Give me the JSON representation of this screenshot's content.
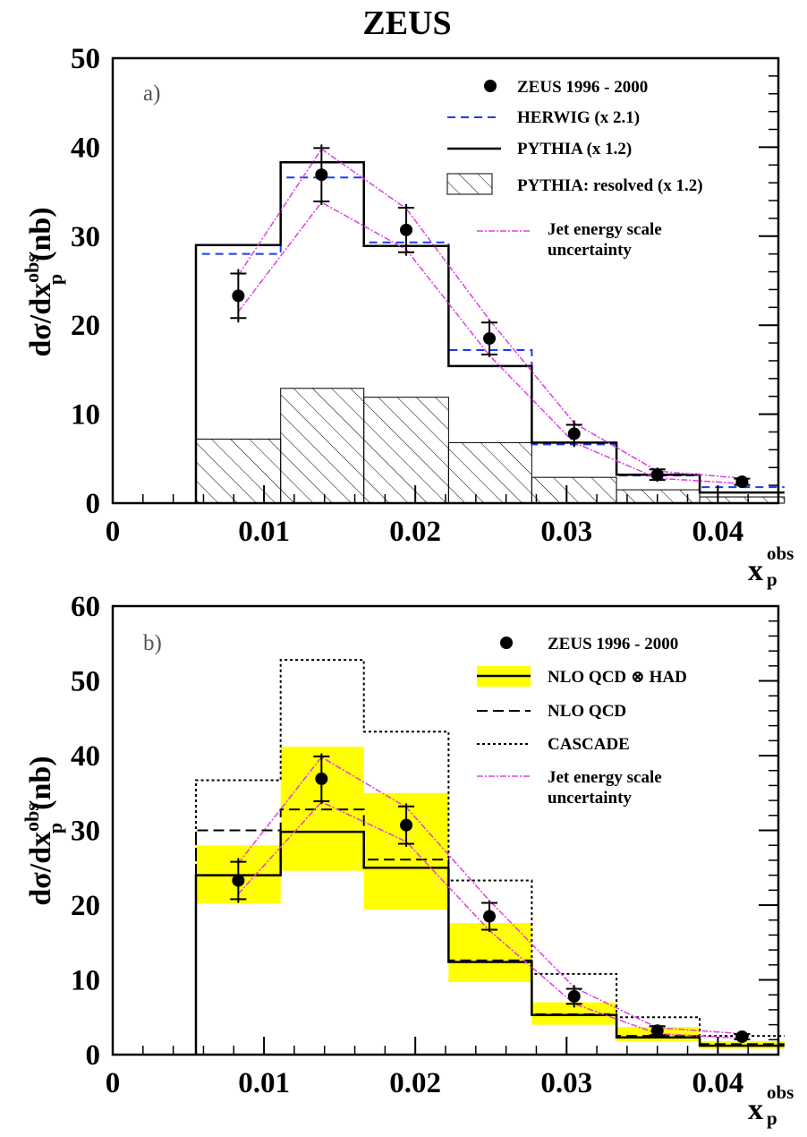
{
  "title": "ZEUS",
  "chart_data": [
    {
      "type": "line",
      "panel_label": "a)",
      "ylabel": {
        "main": "dσ/dx",
        "sup": "obs",
        "sub": "p",
        "unit": "(nb)"
      },
      "xlabel": {
        "main": "x",
        "sup": "obs",
        "sub": "p"
      },
      "xlim": [
        0,
        0.044
      ],
      "ylim": [
        0,
        50
      ],
      "xticks": [
        "0",
        "0.01",
        "0.02",
        "0.03",
        "0.04"
      ],
      "yticks": [
        "0",
        "10",
        "20",
        "30",
        "40",
        "50"
      ],
      "ytick_values": [
        0,
        10,
        20,
        30,
        40,
        50
      ],
      "bin_edges": [
        0.0055,
        0.0111,
        0.0166,
        0.0222,
        0.0277,
        0.0333,
        0.0388,
        0.0444
      ],
      "data": {
        "name": "ZEUS 1996 - 2000",
        "x": [
          0.0083,
          0.0138,
          0.0194,
          0.0249,
          0.0305,
          0.036,
          0.0416
        ],
        "y": [
          23.3,
          36.9,
          30.7,
          18.5,
          7.8,
          3.2,
          2.4
        ],
        "stat_err": [
          2.5,
          3.0,
          2.5,
          1.8,
          1.0,
          0.6,
          0.35
        ],
        "tot_err": [
          3.0,
          3.4,
          2.9,
          2.1,
          1.5,
          0.8,
          0.4
        ]
      },
      "jes_band": {
        "name_line1": "Jet energy scale",
        "name_line2": "uncertainty",
        "upper": [
          25.6,
          39.8,
          33.1,
          20.6,
          9.0,
          3.6,
          2.8
        ],
        "lower": [
          21.5,
          33.8,
          28.5,
          16.6,
          6.8,
          2.8,
          2.2
        ],
        "color": "#e040e0"
      },
      "histograms": [
        {
          "name": "HERWIG (x 2.1)",
          "values": [
            28.0,
            36.6,
            29.3,
            17.2,
            6.6,
            3.1,
            1.8
          ],
          "color": "#1a3cf0",
          "dash": "dashed"
        },
        {
          "name": "PYTHIA (x 1.2)",
          "values": [
            29.0,
            38.3,
            28.9,
            15.4,
            6.8,
            3.2,
            1.2
          ],
          "color": "#000000",
          "dash": "solid"
        }
      ],
      "hatched_hist": {
        "name": "PYTHIA: resolved (x 1.2)",
        "values": [
          7.2,
          12.9,
          11.9,
          6.8,
          2.9,
          1.5,
          0.7
        ]
      }
    },
    {
      "type": "line",
      "panel_label": "b)",
      "ylabel": {
        "main": "dσ/dx",
        "sup": "obs",
        "sub": "p",
        "unit": "(nb)"
      },
      "xlabel": {
        "main": "x",
        "sup": "obs",
        "sub": "p"
      },
      "xlim": [
        0,
        0.044
      ],
      "ylim": [
        0,
        60
      ],
      "xticks": [
        "0",
        "0.01",
        "0.02",
        "0.03",
        "0.04"
      ],
      "yticks": [
        "0",
        "10",
        "20",
        "30",
        "40",
        "50",
        "60"
      ],
      "ytick_values": [
        0,
        10,
        20,
        30,
        40,
        50,
        60
      ],
      "bin_edges": [
        0.0055,
        0.0111,
        0.0166,
        0.0222,
        0.0277,
        0.0333,
        0.0388,
        0.0444
      ],
      "data": {
        "name": "ZEUS 1996 - 2000",
        "x": [
          0.0083,
          0.0138,
          0.0194,
          0.0249,
          0.0305,
          0.036,
          0.0416
        ],
        "y": [
          23.3,
          36.9,
          30.7,
          18.5,
          7.8,
          3.2,
          2.4
        ],
        "stat_err": [
          2.5,
          3.0,
          2.5,
          1.8,
          1.0,
          0.6,
          0.35
        ],
        "tot_err": [
          3.0,
          3.4,
          2.9,
          2.1,
          1.5,
          0.8,
          0.4
        ]
      },
      "jes_band": {
        "name_line1": "Jet energy scale",
        "name_line2": "uncertainty",
        "upper": [
          25.6,
          39.8,
          33.1,
          20.6,
          9.0,
          3.6,
          2.8
        ],
        "lower": [
          21.5,
          33.8,
          28.5,
          16.6,
          6.8,
          2.8,
          2.2
        ],
        "color": "#e040e0"
      },
      "nlo_band": {
        "name": "NLO QCD ⊗ HAD",
        "central": [
          24.0,
          29.8,
          25.0,
          12.4,
          5.3,
          2.3,
          1.2
        ],
        "upper": [
          28.0,
          41.2,
          35.0,
          17.6,
          7.0,
          3.7,
          1.8
        ],
        "lower": [
          20.2,
          24.6,
          19.4,
          9.7,
          4.0,
          1.8,
          0.8
        ],
        "color": "#ffff00"
      },
      "histograms": [
        {
          "name": "NLO QCD",
          "values": [
            30.0,
            32.8,
            26.1,
            12.6,
            5.4,
            2.5,
            1.4
          ],
          "color": "#000000",
          "dash": "dashed"
        },
        {
          "name": "CASCADE",
          "values": [
            36.7,
            52.8,
            43.2,
            23.3,
            10.8,
            5.0,
            2.5
          ],
          "color": "#000000",
          "dash": "dotted"
        }
      ]
    }
  ]
}
